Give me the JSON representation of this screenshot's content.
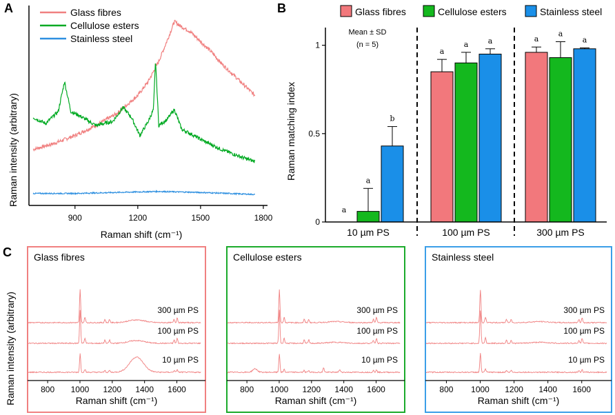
{
  "panels": {
    "a": "A",
    "b": "B",
    "c": "C"
  },
  "colors": {
    "glass": "#f08080",
    "cellulose": "#00aa22",
    "steel": "#2d8fe0",
    "glass_fill": "#f2787c",
    "cellulose_fill": "#14b81e",
    "steel_fill": "#1a8fe8"
  },
  "chart_data": [
    {
      "type": "line",
      "panel": "A",
      "xlabel": "Raman shift (cm⁻¹)",
      "ylabel": "Raman intensity (arbitrary)",
      "xlim": [
        680,
        1820
      ],
      "x_ticks": [
        900,
        1200,
        1500,
        1800
      ],
      "x_tick_labels": [
        "900",
        "1200",
        "1500",
        "1800"
      ],
      "series": [
        {
          "name": "Glass fibres",
          "color": "#f08080",
          "x": [
            700,
            800,
            900,
            1000,
            1100,
            1200,
            1250,
            1300,
            1350,
            1375,
            1400,
            1450,
            1500,
            1550,
            1600,
            1650,
            1700,
            1760
          ],
          "y": [
            0.28,
            0.31,
            0.35,
            0.4,
            0.46,
            0.55,
            0.62,
            0.72,
            0.85,
            0.92,
            0.9,
            0.87,
            0.82,
            0.77,
            0.71,
            0.66,
            0.61,
            0.55
          ]
        },
        {
          "name": "Cellulose esters",
          "color": "#00aa22",
          "x": [
            700,
            760,
            820,
            850,
            880,
            920,
            1000,
            1080,
            1130,
            1170,
            1210,
            1250,
            1275,
            1285,
            1300,
            1340,
            1375,
            1410,
            1450,
            1520,
            1600,
            1650,
            1700,
            1760
          ],
          "y": [
            0.44,
            0.41,
            0.47,
            0.62,
            0.47,
            0.45,
            0.4,
            0.42,
            0.49,
            0.44,
            0.35,
            0.42,
            0.48,
            0.73,
            0.4,
            0.43,
            0.48,
            0.38,
            0.36,
            0.32,
            0.28,
            0.26,
            0.24,
            0.22
          ]
        },
        {
          "name": "Stainless steel",
          "color": "#2d8fe0",
          "x": [
            700,
            900,
            1100,
            1300,
            1500,
            1760
          ],
          "y": [
            0.06,
            0.06,
            0.065,
            0.07,
            0.065,
            0.055
          ]
        }
      ]
    },
    {
      "type": "bar",
      "panel": "B",
      "ylabel": "Raman matching index",
      "ylim": [
        0,
        1.1
      ],
      "y_ticks": [
        0.0,
        0.5,
        1.0
      ],
      "y_tick_labels": [
        "0.0",
        "0.5",
        "1.0"
      ],
      "note": [
        "Mean ± SD",
        "(n = 5)"
      ],
      "categories": [
        "10 µm PS",
        "100 µm PS",
        "300 µm PS"
      ],
      "series": [
        {
          "name": "Glass fibres",
          "color": "#f2787c",
          "values": [
            0.0,
            0.85,
            0.96
          ],
          "sd": [
            0.0,
            0.07,
            0.03
          ],
          "letters": [
            "a",
            "a",
            "a"
          ]
        },
        {
          "name": "Cellulose esters",
          "color": "#14b81e",
          "values": [
            0.06,
            0.9,
            0.93
          ],
          "sd": [
            0.13,
            0.06,
            0.09
          ],
          "letters": [
            "a",
            "a",
            "a"
          ]
        },
        {
          "name": "Stainless steel",
          "color": "#1a8fe8",
          "values": [
            0.43,
            0.95,
            0.98
          ],
          "sd": [
            0.11,
            0.03,
            0.005
          ],
          "letters": [
            "b",
            "a",
            "a"
          ]
        }
      ]
    },
    {
      "type": "line",
      "panel": "C",
      "ylabel": "Raman intensity (arbitrary)",
      "xlabel": "Raman shift (cm⁻¹)",
      "xlim": [
        680,
        1760
      ],
      "x_ticks": [
        800,
        1000,
        1200,
        1400,
        1600
      ],
      "x_tick_labels": [
        "800",
        "1000",
        "1200",
        "1400",
        "1600"
      ],
      "trace_labels": [
        "300 µm PS",
        "100 µm PS",
        "10 µm PS"
      ],
      "subplots": [
        {
          "title": "Glass fibres",
          "frame_color": "#f08080",
          "broad_peak_10um": 1350
        },
        {
          "title": "Cellulose esters",
          "frame_color": "#1aaa2a",
          "broad_peak_10um": 0
        },
        {
          "title": "Stainless steel",
          "frame_color": "#3a9ee8",
          "broad_peak_10um": 0
        }
      ],
      "ps_peaks_cm1": [
        1001,
        1031,
        1155,
        1183,
        1583,
        1602
      ]
    }
  ]
}
